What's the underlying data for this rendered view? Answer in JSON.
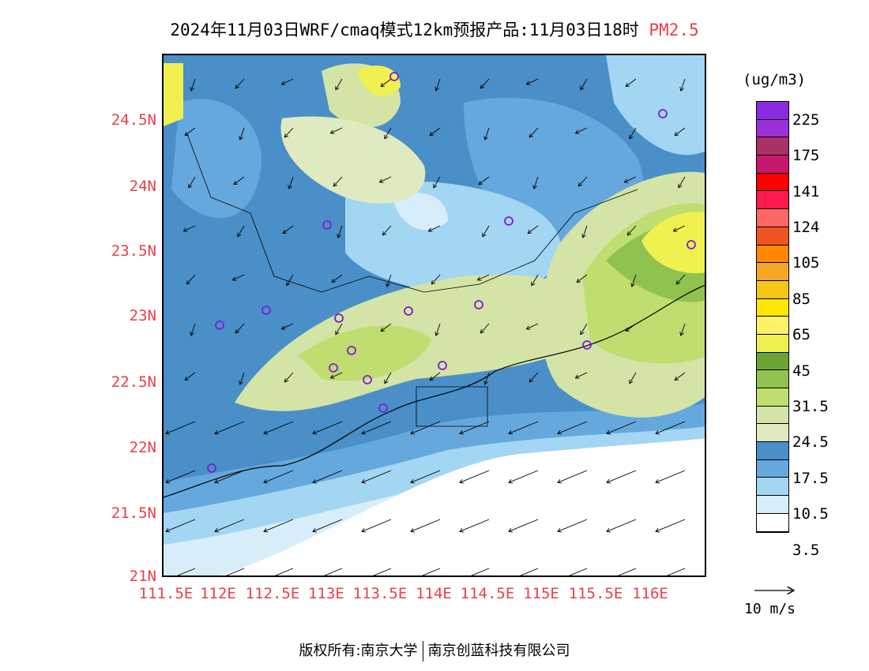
{
  "title": {
    "main": "2024年11月03日WRF/cmaq模式12km预报产品:11月03日18时",
    "species": "PM2.5"
  },
  "axes": {
    "y_labels": [
      "24.5N",
      "24N",
      "23.5N",
      "23N",
      "22.5N",
      "22N",
      "21.5N",
      "21N"
    ],
    "x_labels": [
      "111.5E",
      "112E",
      "112.5E",
      "113E",
      "113.5E",
      "114E",
      "114.5E",
      "115E",
      "115.5E",
      "116E"
    ]
  },
  "colorbar": {
    "unit": "(ug/m3)",
    "labels": [
      "225",
      "175",
      "141",
      "124",
      "105",
      "85",
      "65",
      "45",
      "31.5",
      "24.5",
      "17.5",
      "10.5",
      "3.5"
    ],
    "colors": [
      "#8a2be2",
      "#9b30d8",
      "#a83264",
      "#c8186e",
      "#ff0000",
      "#ff1a4d",
      "#ff6666",
      "#ee5522",
      "#ff8800",
      "#f5a623",
      "#f5c518",
      "#ffe600",
      "#fff066",
      "#f0f050",
      "#6aa533",
      "#8fc24f",
      "#c0dd70",
      "#d3e4a6",
      "#dfeac0",
      "#4a8fc8",
      "#65a8dd",
      "#a3d6f3",
      "#d7eefa",
      "#ffffff"
    ]
  },
  "reference_vector": {
    "label": "10 m/s"
  },
  "footer": {
    "left": "版权所有:南京大学",
    "right": "南京创蓝科技有限公司"
  }
}
